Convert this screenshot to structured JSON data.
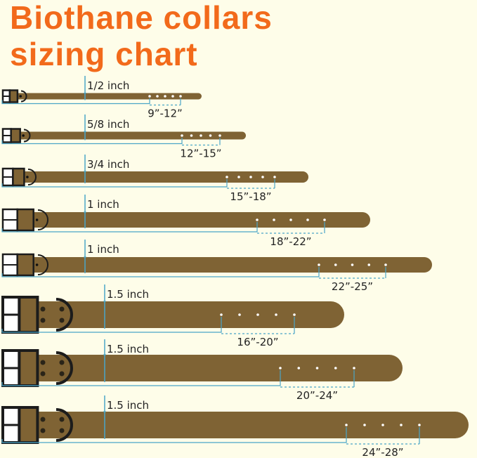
{
  "title": {
    "line1": "Biothane collars",
    "line2": "sizing chart"
  },
  "colors": {
    "title": "#f26a1b",
    "strap": "#7f6334",
    "measure_line": "#4aa6c8",
    "hardware": "#1c1c1c",
    "background": "#fefde9"
  },
  "collars": [
    {
      "width_label": "1/2 inch",
      "size_range": "9”-12”"
    },
    {
      "width_label": "5/8 inch",
      "size_range": "12”-15”"
    },
    {
      "width_label": "3/4 inch",
      "size_range": "15”-18”"
    },
    {
      "width_label": "1 inch",
      "size_range": "18”-22”"
    },
    {
      "width_label": "1 inch",
      "size_range": "22”-25”"
    },
    {
      "width_label": "1.5 inch",
      "size_range": "16”-20”"
    },
    {
      "width_label": "1.5 inch",
      "size_range": "20”-24”"
    },
    {
      "width_label": "1.5 inch",
      "size_range": "24”-28”"
    }
  ]
}
